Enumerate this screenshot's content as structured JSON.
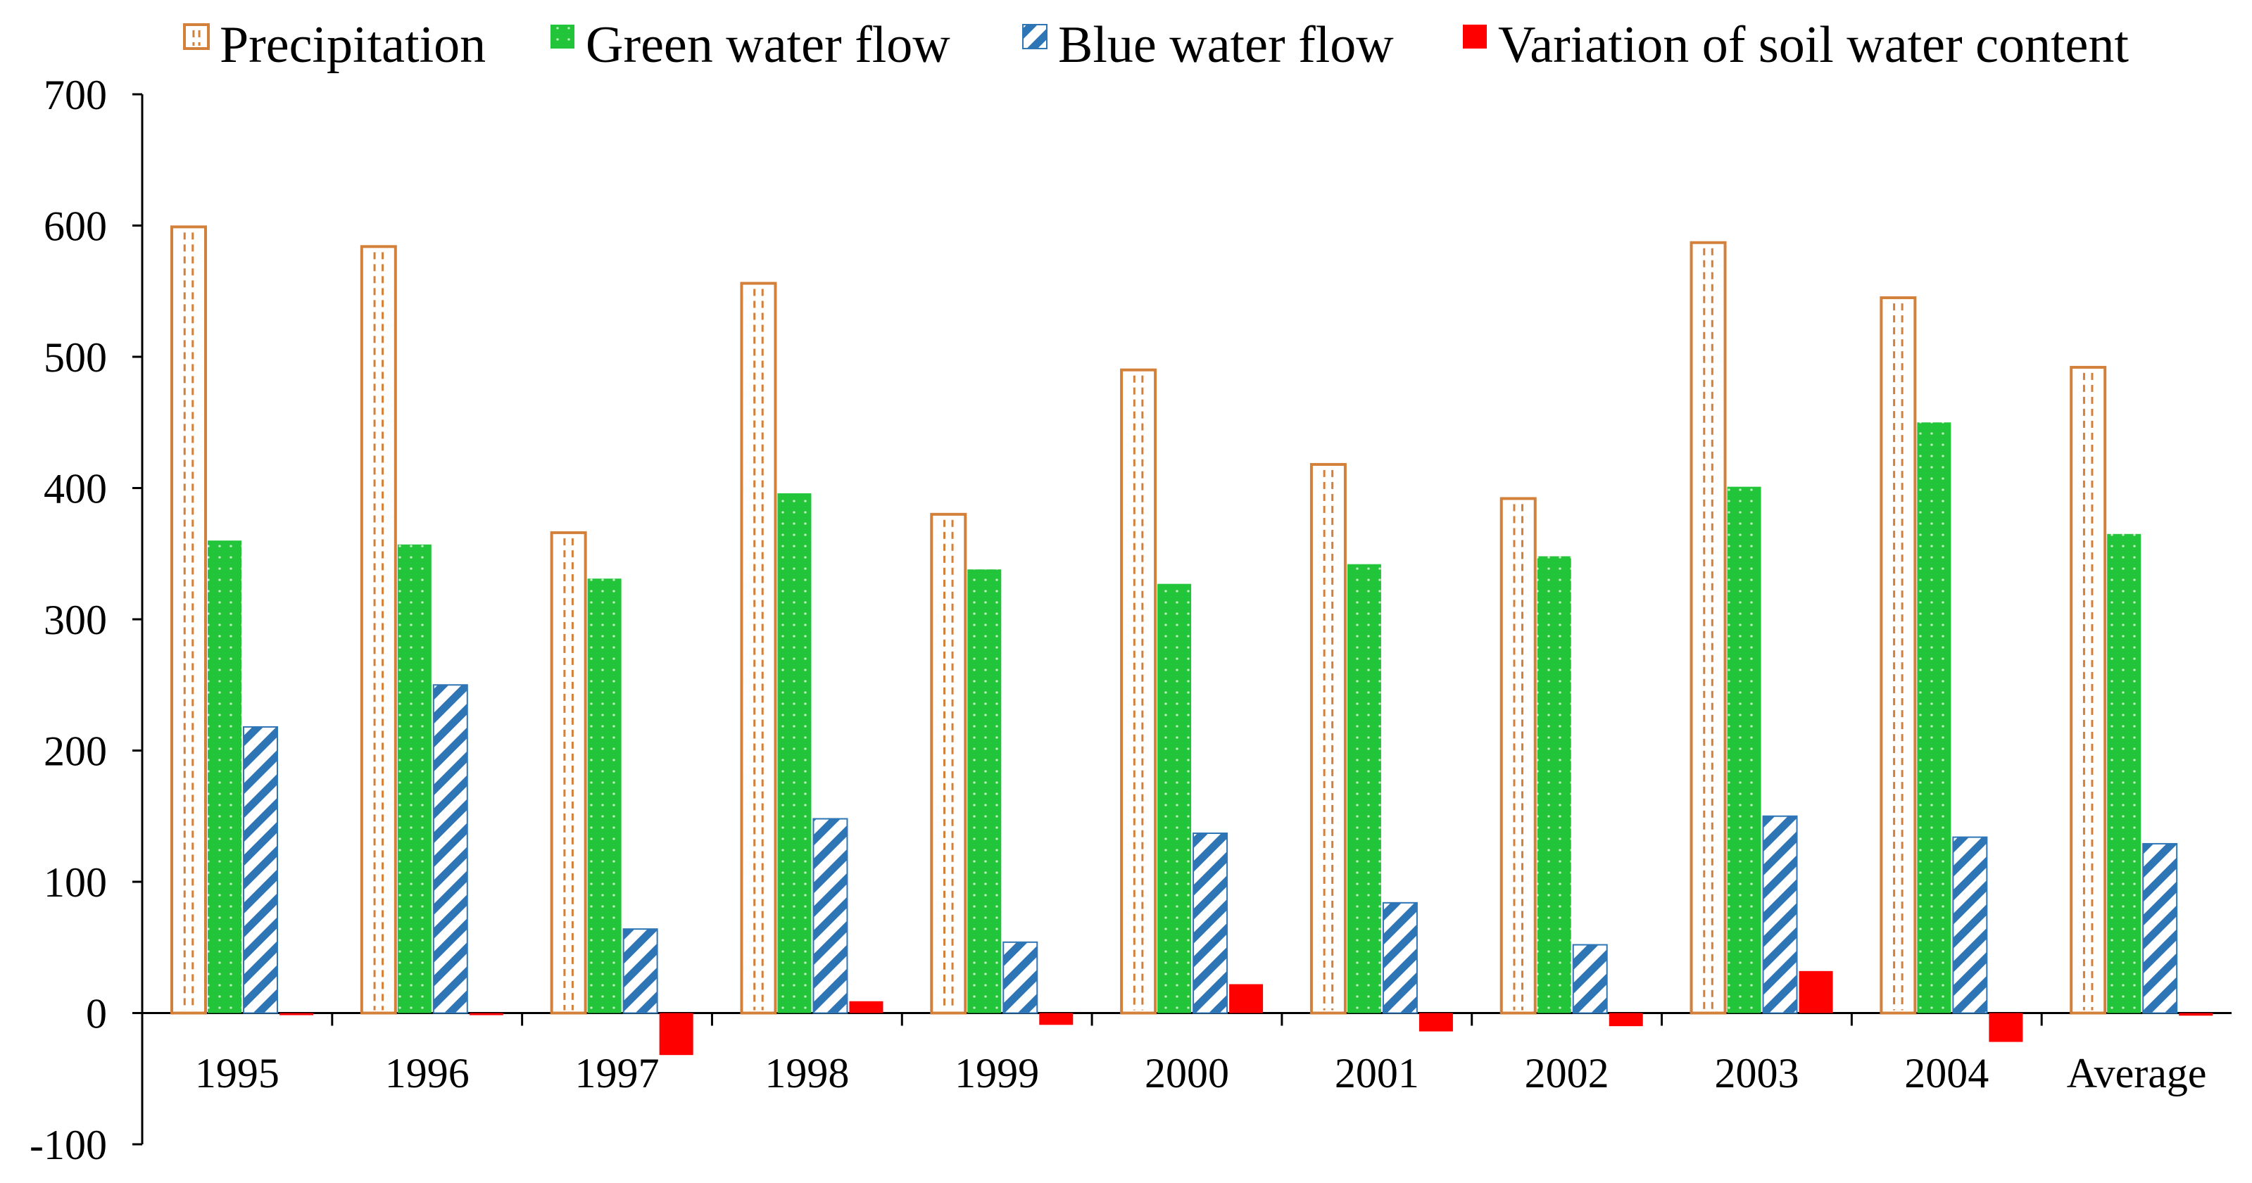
{
  "chart_data": {
    "type": "bar",
    "title": "",
    "xlabel": "",
    "ylabel": "",
    "ylim": [
      -100,
      700
    ],
    "yticks": [
      -100,
      0,
      100,
      200,
      300,
      400,
      500,
      600,
      700
    ],
    "ytick_labels": [
      "-100",
      "0",
      "100",
      "200",
      "300",
      "400",
      "500",
      "600",
      "700"
    ],
    "categories": [
      "1995",
      "1996",
      "1997",
      "1998",
      "1999",
      "2000",
      "2001",
      "2002",
      "2003",
      "2004",
      "Average"
    ],
    "legend_position": "top",
    "series": [
      {
        "name": "Precipitation",
        "pattern": "dashed-outline",
        "color": "#D2803A",
        "values": [
          599,
          584,
          366,
          556,
          380,
          490,
          418,
          392,
          587,
          545,
          492
        ]
      },
      {
        "name": "Green water flow",
        "pattern": "dotted-fill",
        "color": "#22C43A",
        "values": [
          360,
          357,
          331,
          396,
          338,
          327,
          342,
          348,
          401,
          450,
          365
        ]
      },
      {
        "name": "Blue water flow",
        "pattern": "diagonal-hatch",
        "color": "#2E75B6",
        "values": [
          218,
          250,
          64,
          148,
          54,
          137,
          84,
          52,
          150,
          134,
          129
        ]
      },
      {
        "name": "Variation of soil water content",
        "pattern": "solid",
        "color": "#FF0000",
        "values": [
          0,
          -1,
          -32,
          9,
          -9,
          22,
          -14,
          -10,
          32,
          -22,
          -2
        ]
      }
    ]
  }
}
